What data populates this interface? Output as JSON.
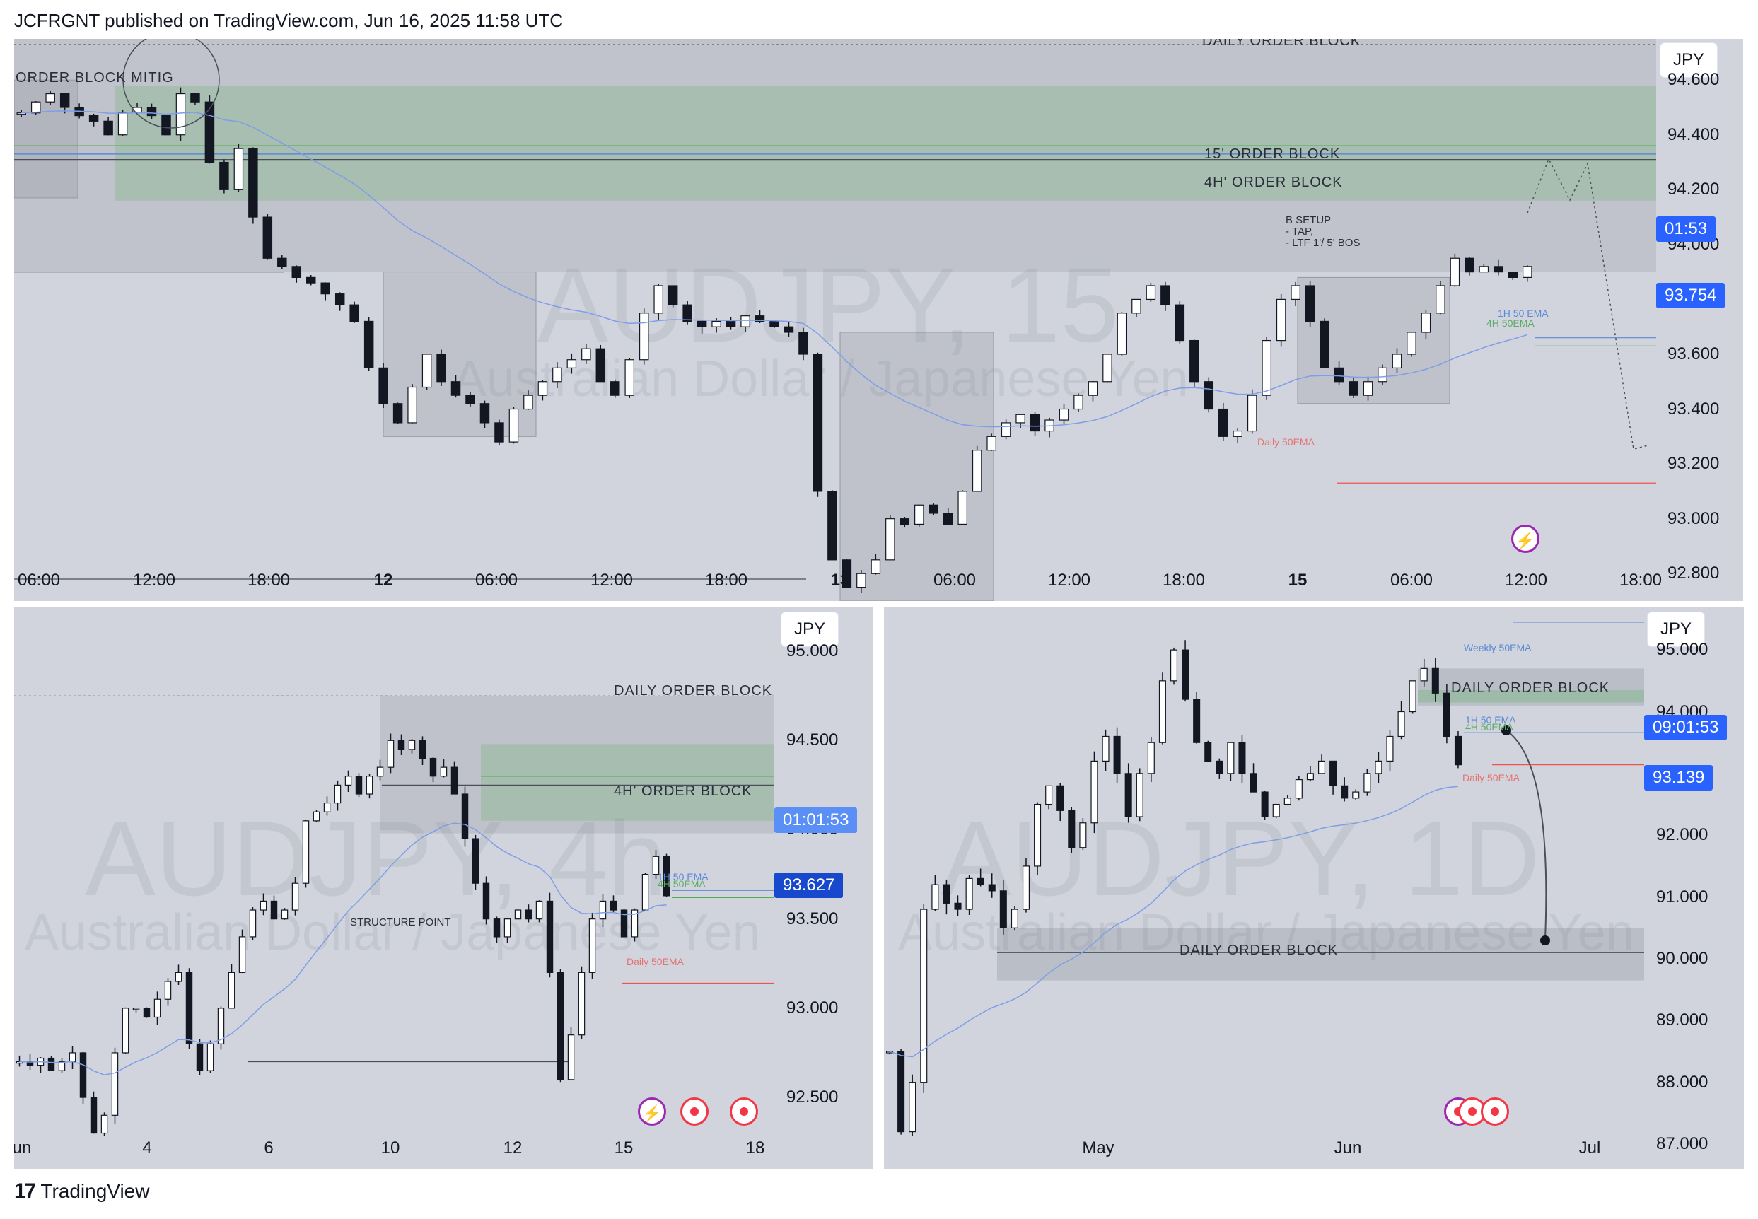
{
  "header": {
    "text": "JCFRGNT published on TradingView.com, Jun 16, 2025 11:58 UTC"
  },
  "footer": {
    "logo_glyph": "17",
    "brand": "TradingView"
  },
  "panels": {
    "top": {
      "currency": "JPY",
      "watermark": {
        "symbol": "AUDJPY, 15",
        "name": "Australian Dollar / Japanese Yen"
      },
      "labels": {
        "daily_ob": "DAILY ORDER BLOCK",
        "ob_mitig": "ORDER BLOCK MITIG",
        "ob_15": "15' ORDER BLOCK",
        "ob_4h": "4H' ORDER BLOCK",
        "setup_1": "B SETUP",
        "setup_2": "- TAP,",
        "setup_3": "- LTF 1'/ 5' BOS",
        "ema_1h": "1H 50 EMA",
        "ema_4h": "4H 50EMA",
        "ema_d": "Daily 50EMA"
      },
      "price_tags": {
        "countdown": "01:53",
        "last": "93.754"
      },
      "y_ticks": [
        "94.600",
        "94.400",
        "94.200",
        "94.000",
        "93.800",
        "93.600",
        "93.400",
        "93.200",
        "93.000",
        "92.800"
      ],
      "x_ticks": [
        {
          "t": "06:00",
          "b": false
        },
        {
          "t": "12:00",
          "b": false
        },
        {
          "t": "18:00",
          "b": false
        },
        {
          "t": "12",
          "b": true
        },
        {
          "t": "06:00",
          "b": false
        },
        {
          "t": "12:00",
          "b": false
        },
        {
          "t": "18:00",
          "b": false
        },
        {
          "t": "13",
          "b": true
        },
        {
          "t": "06:00",
          "b": false
        },
        {
          "t": "12:00",
          "b": false
        },
        {
          "t": "18:00",
          "b": false
        },
        {
          "t": "15",
          "b": true
        },
        {
          "t": "06:00",
          "b": false
        },
        {
          "t": "12:00",
          "b": false
        },
        {
          "t": "18:00",
          "b": false
        }
      ]
    },
    "left": {
      "currency": "JPY",
      "watermark": {
        "symbol": "AUDJPY, 4h",
        "name": "Australian Dollar / Japanese Yen"
      },
      "labels": {
        "daily_ob": "DAILY ORDER BLOCK",
        "ob_4h": "4H' ORDER BLOCK",
        "structure": "STRUCTURE POINT",
        "ema_1h": "1H 50 EMA",
        "ema_4h": "4H 50EMA",
        "ema_d": "Daily 50EMA"
      },
      "price_tags": {
        "countdown": "01:01:53",
        "last": "93.627"
      },
      "y_ticks": [
        "95.000",
        "94.500",
        "94.000",
        "93.500",
        "93.000",
        "92.500"
      ],
      "x_ticks": [
        "Jun",
        "4",
        "6",
        "10",
        "12",
        "15",
        "18"
      ]
    },
    "right": {
      "currency": "JPY",
      "watermark": {
        "symbol": "AUDJPY, 1D",
        "name": "Australian Dollar / Japanese Yen"
      },
      "labels": {
        "weekly_ema": "Weekly 50EMA",
        "daily_ob_top": "DAILY ORDER BLOCK",
        "daily_ob_bottom": "DAILY ORDER BLOCK",
        "ema_1h": "1H 50 EMA",
        "ema_4h": "4H 50EMA",
        "ema_d": "Daily 50EMA"
      },
      "price_tags": {
        "countdown": "09:01:53",
        "last": "93.139"
      },
      "y_ticks": [
        "95.000",
        "94.000",
        "93.000",
        "92.000",
        "91.000",
        "90.000",
        "89.000",
        "88.000",
        "87.000"
      ],
      "x_ticks": [
        "May",
        "Jun",
        "Jul"
      ]
    }
  },
  "chart_data": [
    {
      "type": "candlestick",
      "title": "AUDJPY, 15",
      "ylim": [
        92.7,
        94.75
      ],
      "y_ticks": [
        92.8,
        93.0,
        93.2,
        93.4,
        93.6,
        93.8,
        94.0,
        94.2,
        94.4,
        94.6
      ],
      "close_path": [
        94.48,
        94.52,
        94.55,
        94.5,
        94.47,
        94.45,
        94.4,
        94.48,
        94.5,
        94.47,
        94.4,
        94.55,
        94.52,
        94.3,
        94.2,
        94.35,
        94.1,
        93.95,
        93.92,
        93.88,
        93.86,
        93.82,
        93.78,
        93.72,
        93.55,
        93.42,
        93.35,
        93.48,
        93.6,
        93.5,
        93.45,
        93.42,
        93.35,
        93.28,
        93.4,
        93.45,
        93.5,
        93.55,
        93.58,
        93.62,
        93.5,
        93.45,
        93.58,
        93.75,
        93.85,
        93.78,
        93.72,
        93.7,
        93.72,
        93.7,
        93.74,
        93.72,
        93.7,
        93.68,
        93.6,
        93.1,
        92.85,
        92.75,
        92.8,
        92.85,
        93.0,
        92.98,
        93.05,
        93.02,
        92.98,
        93.1,
        93.25,
        93.3,
        93.35,
        93.38,
        93.32,
        93.36,
        93.4,
        93.45,
        93.5,
        93.6,
        93.75,
        93.8,
        93.85,
        93.78,
        93.65,
        93.5,
        93.4,
        93.3,
        93.32,
        93.45,
        93.65,
        93.8,
        93.85,
        93.72,
        93.55,
        93.5,
        93.45,
        93.5,
        93.55,
        93.6,
        93.68,
        93.75,
        93.85,
        93.95,
        93.9,
        93.92,
        93.9,
        93.88,
        93.92
      ],
      "levels": {
        "daily_ob": [
          93.9,
          94.75
        ],
        "ob_4h": [
          94.16,
          94.58
        ],
        "ob_15": [
          94.32,
          94.37
        ],
        "daily_50ema": 93.13
      },
      "series": [
        {
          "name": "1H 50 EMA",
          "values": [
            93.66
          ]
        },
        {
          "name": "4H 50EMA",
          "values": [
            93.64
          ]
        }
      ],
      "last": 93.754
    },
    {
      "type": "candlestick",
      "title": "AUDJPY, 4h",
      "ylim": [
        92.1,
        95.25
      ],
      "y_ticks": [
        92.5,
        93.0,
        93.5,
        94.0,
        94.5,
        95.0
      ],
      "close_path": [
        92.7,
        92.68,
        92.72,
        92.65,
        92.7,
        92.75,
        92.5,
        92.3,
        92.4,
        92.75,
        93.0,
        93.0,
        92.95,
        93.05,
        93.15,
        93.2,
        92.8,
        92.65,
        92.8,
        93.0,
        93.2,
        93.4,
        93.55,
        93.6,
        93.5,
        93.55,
        93.7,
        94.05,
        94.1,
        94.15,
        94.25,
        94.3,
        94.2,
        94.3,
        94.35,
        94.5,
        94.45,
        94.5,
        94.4,
        94.3,
        94.35,
        94.2,
        93.95,
        93.7,
        93.5,
        93.4,
        93.5,
        93.55,
        93.5,
        93.6,
        93.2,
        92.6,
        92.85,
        93.2,
        93.5,
        93.6,
        93.55,
        93.4,
        93.55,
        93.75,
        93.85,
        93.63
      ],
      "levels": {
        "daily_ob": [
          94.0,
          94.75
        ],
        "ob_4h": [
          94.05,
          94.48
        ],
        "structure_point": 92.7,
        "daily_50ema": 93.14
      },
      "series": [
        {
          "name": "1H 50 EMA",
          "values": [
            93.66
          ]
        },
        {
          "name": "4H 50EMA",
          "values": [
            93.62
          ]
        }
      ],
      "last": 93.627
    },
    {
      "type": "candlestick",
      "title": "AUDJPY, 1D",
      "ylim": [
        86.6,
        95.7
      ],
      "y_ticks": [
        87,
        88,
        89,
        90,
        91,
        92,
        93,
        94,
        95
      ],
      "close_path": [
        88.5,
        87.2,
        88.0,
        90.8,
        91.2,
        90.9,
        90.8,
        91.3,
        91.2,
        91.1,
        90.5,
        90.8,
        91.5,
        92.5,
        92.8,
        92.4,
        91.8,
        92.2,
        93.2,
        93.6,
        93.0,
        92.3,
        93.0,
        93.5,
        94.5,
        95.0,
        94.2,
        93.5,
        93.2,
        93.0,
        93.5,
        93.0,
        92.7,
        92.3,
        92.5,
        92.6,
        92.9,
        93.0,
        93.2,
        92.8,
        92.6,
        92.7,
        93.0,
        93.2,
        93.6,
        94.0,
        94.5,
        94.7,
        94.3,
        93.6,
        93.14
      ],
      "levels": {
        "daily_ob_top": [
          94.1,
          94.7
        ],
        "daily_ob_bottom": [
          89.65,
          90.5
        ],
        "weekly_50ema": 95.5,
        "daily_50ema": 93.14
      },
      "series": [
        {
          "name": "1H 50 EMA",
          "values": [
            93.66
          ]
        },
        {
          "name": "4H 50EMA",
          "values": [
            93.6
          ]
        }
      ],
      "last": 93.139
    }
  ]
}
